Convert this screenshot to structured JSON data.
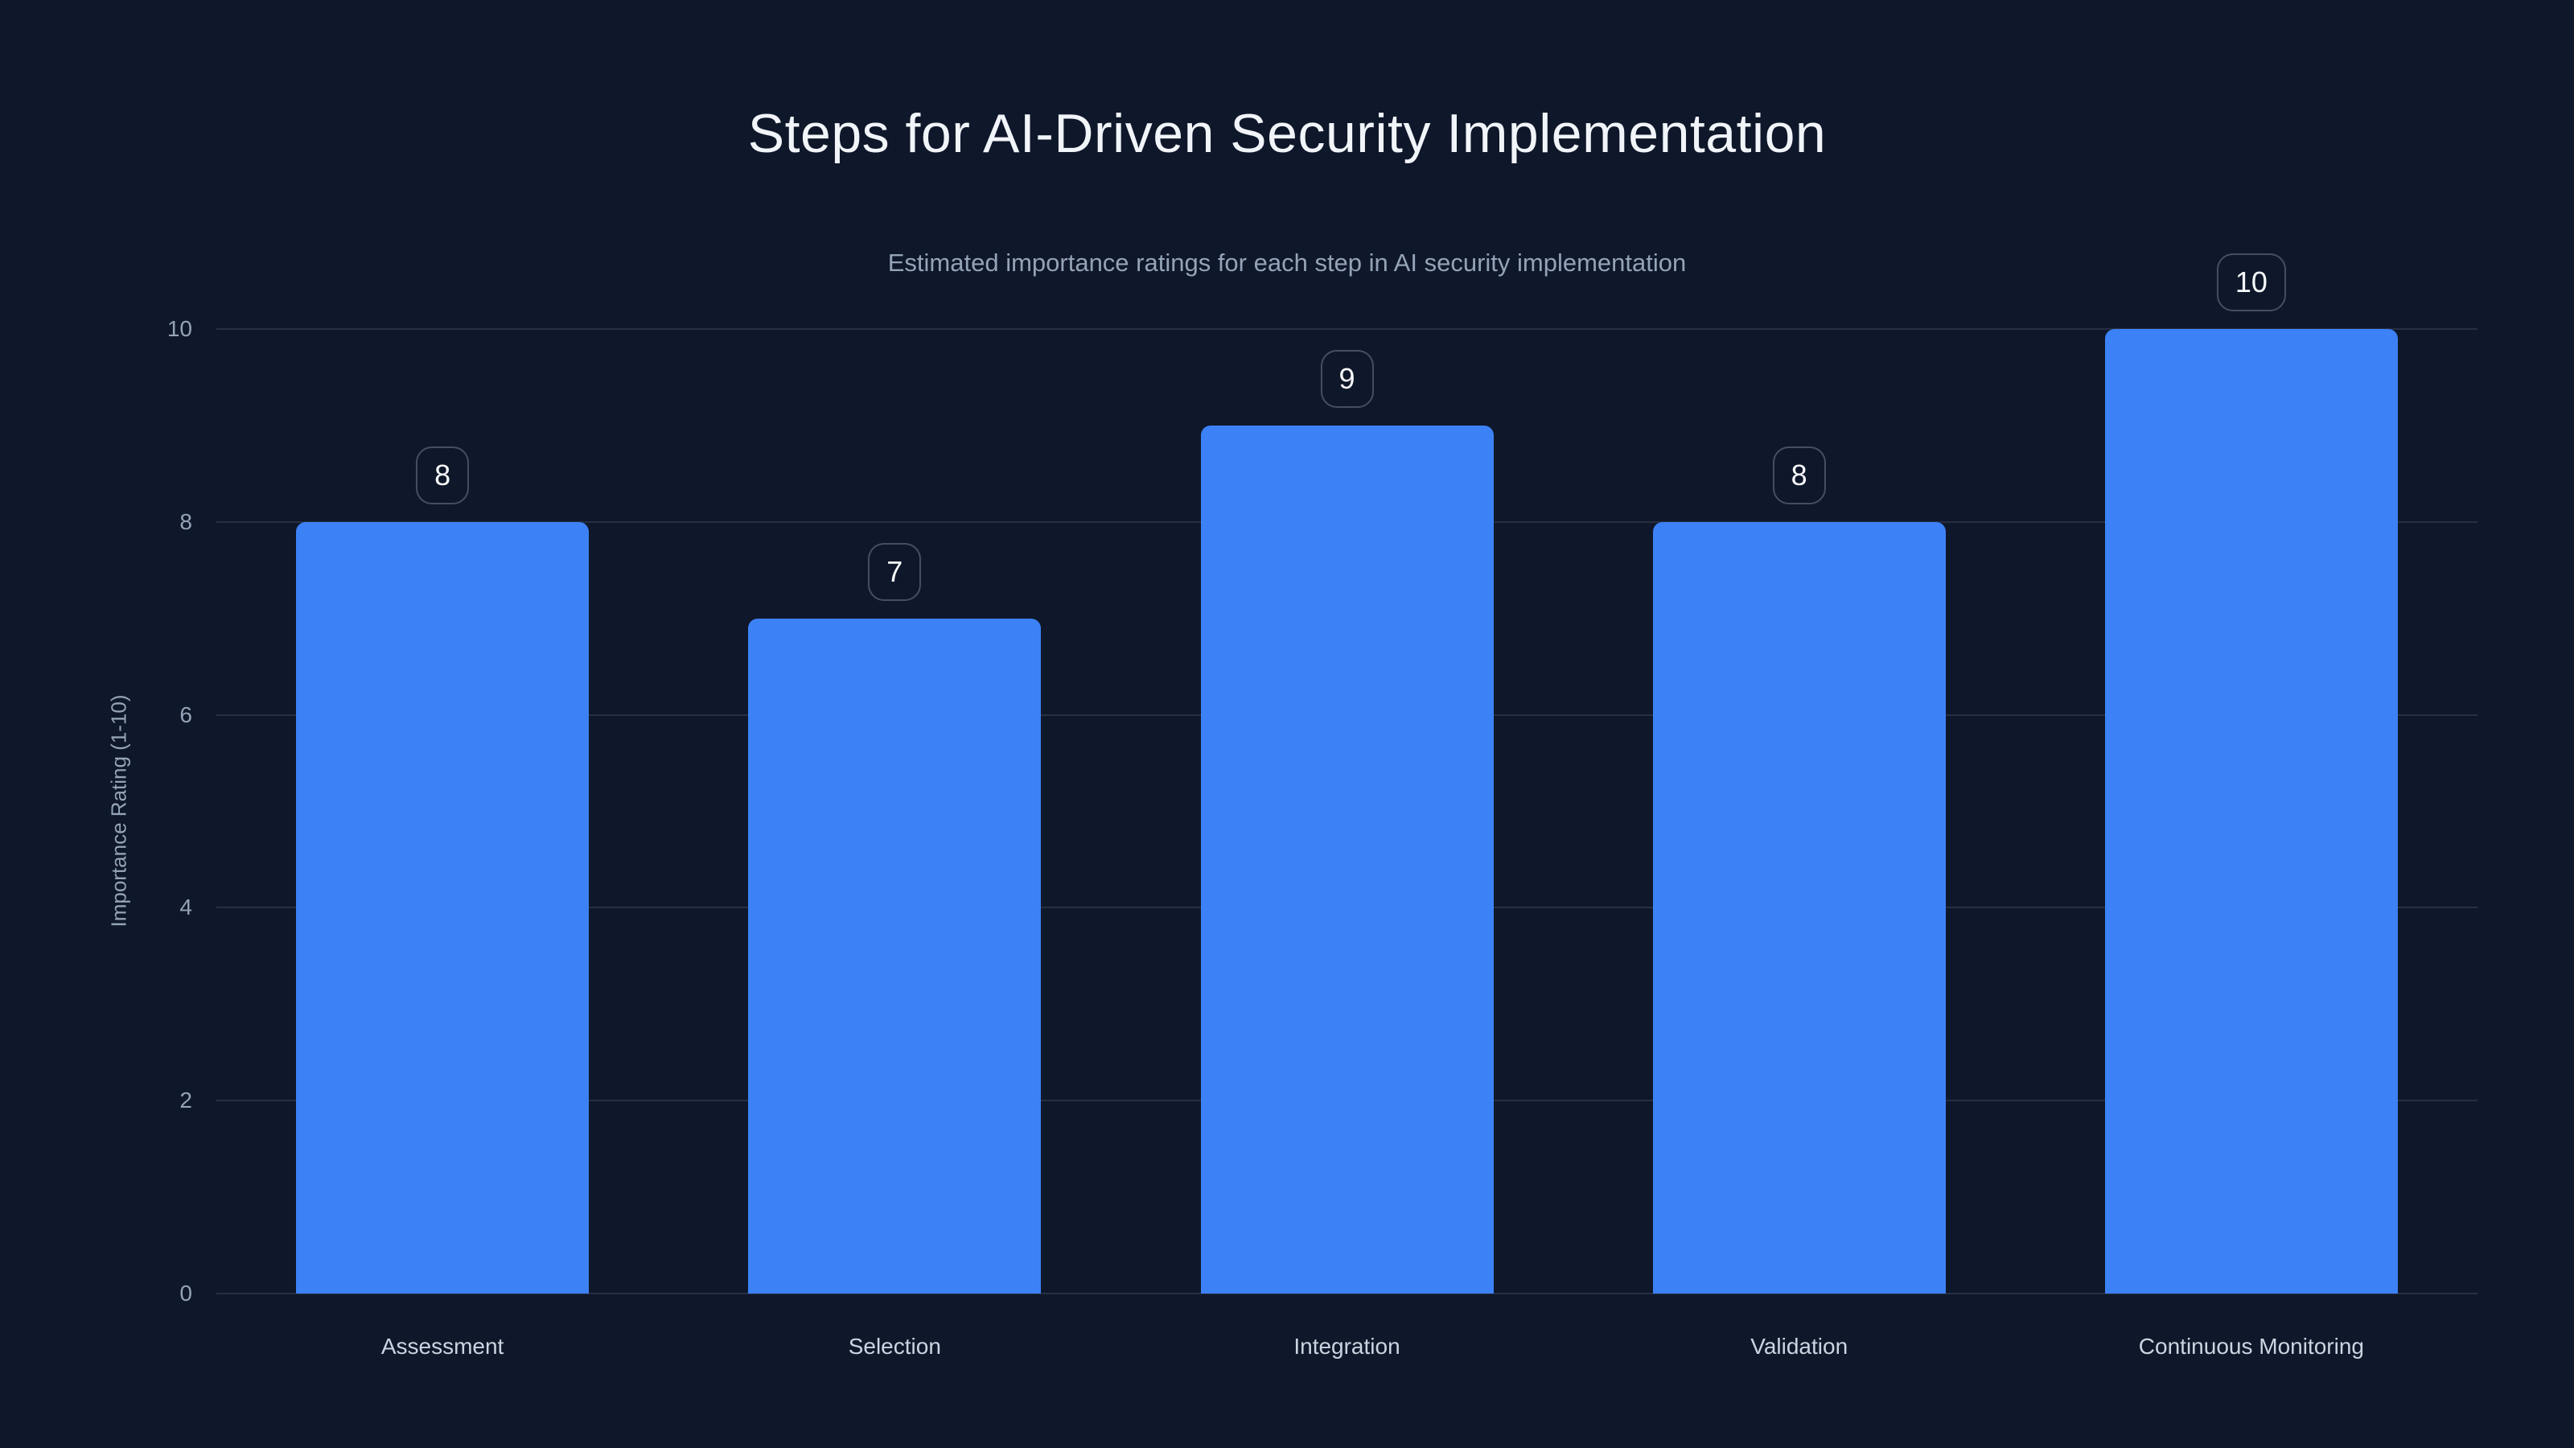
{
  "chart_data": {
    "type": "bar",
    "title": "Steps for AI-Driven Security Implementation",
    "subtitle": "Estimated importance ratings for each step in AI security implementation",
    "categories": [
      "Assessment",
      "Selection",
      "Integration",
      "Validation",
      "Continuous Monitoring"
    ],
    "values": [
      8,
      7,
      9,
      8,
      10
    ],
    "value_labels": [
      "8",
      "7",
      "9",
      "8",
      "10"
    ],
    "xlabel": "",
    "ylabel": "Importance Rating (1-10)",
    "yticks": [
      0,
      2,
      4,
      6,
      8,
      10
    ],
    "ylim": [
      0,
      10
    ],
    "grid": true,
    "legend": false,
    "colors": {
      "background": "#0f172a",
      "bar": "#3c82f6",
      "gridline": "rgba(148,163,184,0.18)",
      "title_text": "#f1f5f9",
      "subtitle_text": "#94a3b8",
      "tick_text": "#94a3b8",
      "category_text": "#cbd5e1",
      "badge_border": "#454f61",
      "badge_text": "#f8fafc"
    }
  }
}
